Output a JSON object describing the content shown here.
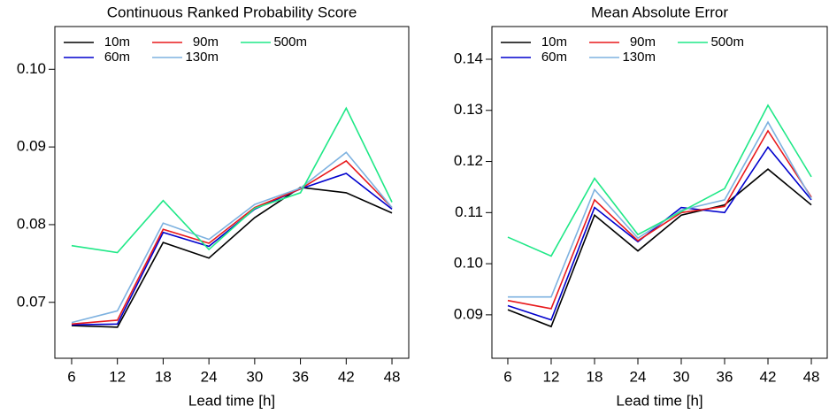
{
  "chart_data": [
    {
      "type": "line",
      "title": "Continuous Ranked Probability Score",
      "x_label": "Lead time [h]",
      "x": [
        6,
        12,
        18,
        24,
        30,
        36,
        42,
        48
      ],
      "xlim": [
        3.8,
        50.2
      ],
      "xticks": [
        6,
        12,
        18,
        24,
        30,
        36,
        42,
        48
      ],
      "ylim": [
        0.0628,
        0.1055
      ],
      "yticks": [
        0.07,
        0.08,
        0.09,
        {
          "value": 0.1,
          "label": "0.10"
        }
      ],
      "legend": "top-left",
      "series": [
        {
          "name": "10m",
          "color": "#000000",
          "values": [
            0.067,
            0.0668,
            0.0777,
            0.0757,
            0.0809,
            0.0848,
            0.0841,
            0.0815
          ]
        },
        {
          "name": "60m",
          "color": "#0000cd",
          "values": [
            0.0671,
            0.0672,
            0.079,
            0.0772,
            0.082,
            0.0846,
            0.0866,
            0.082
          ]
        },
        {
          "name": "90m",
          "color": "#e8191c",
          "values": [
            0.0672,
            0.0677,
            0.0794,
            0.0776,
            0.0822,
            0.0846,
            0.0882,
            0.0822
          ]
        },
        {
          "name": "130m",
          "color": "#7eb2e0",
          "values": [
            0.0674,
            0.0689,
            0.0802,
            0.0781,
            0.0826,
            0.0847,
            0.0893,
            0.0822
          ]
        },
        {
          "name": "500m",
          "color": "#1fe887",
          "values": [
            0.0773,
            0.0764,
            0.0831,
            0.0768,
            0.0821,
            0.0841,
            0.095,
            0.0829
          ]
        }
      ]
    },
    {
      "type": "line",
      "title": "Mean Absolute Error",
      "x_label": "Lead time [h]",
      "x": [
        6,
        12,
        18,
        24,
        30,
        36,
        42,
        48
      ],
      "xlim": [
        3.8,
        50.2
      ],
      "xticks": [
        6,
        12,
        18,
        24,
        30,
        36,
        42,
        48
      ],
      "ylim": [
        0.0815,
        0.1464
      ],
      "yticks": [
        0.09,
        {
          "value": 0.1,
          "label": "0.10"
        },
        0.11,
        0.12,
        0.13,
        0.14
      ],
      "legend": "top-left",
      "series": [
        {
          "name": "10m",
          "color": "#000000",
          "values": [
            0.091,
            0.0877,
            0.1095,
            0.1025,
            0.1095,
            0.1115,
            0.1185,
            0.1115
          ]
        },
        {
          "name": "60m",
          "color": "#0000cd",
          "values": [
            0.0918,
            0.089,
            0.111,
            0.1043,
            0.111,
            0.11,
            0.1228,
            0.1125
          ]
        },
        {
          "name": "90m",
          "color": "#e8191c",
          "values": [
            0.0928,
            0.0912,
            0.1125,
            0.1045,
            0.11,
            0.1112,
            0.126,
            0.113
          ]
        },
        {
          "name": "130m",
          "color": "#7eb2e0",
          "values": [
            0.0935,
            0.0935,
            0.1145,
            0.105,
            0.1105,
            0.1125,
            0.1277,
            0.1127
          ]
        },
        {
          "name": "500m",
          "color": "#1fe887",
          "values": [
            0.1052,
            0.1015,
            0.1167,
            0.1057,
            0.1102,
            0.1147,
            0.131,
            0.117
          ]
        }
      ]
    }
  ]
}
